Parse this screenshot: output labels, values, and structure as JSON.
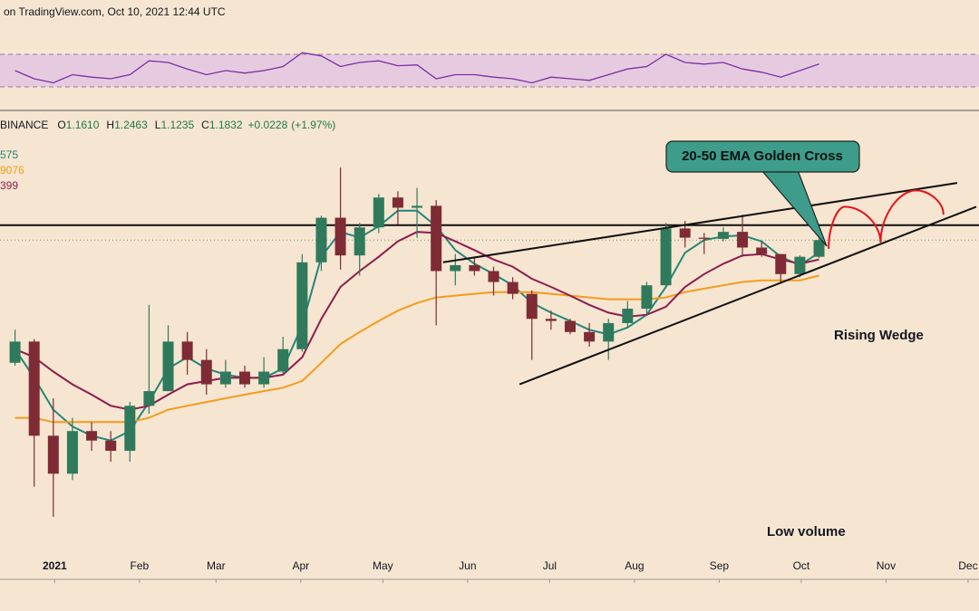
{
  "chart_data": {
    "type": "candlestick",
    "header": "on TradingView.com, Oct 10, 2021 12:44 UTC",
    "symbol": "BINANCE",
    "ohlc_header": {
      "labels": [
        "O",
        "H",
        "L",
        "C"
      ],
      "values": [
        1.161,
        1.2463,
        1.1235,
        1.1832
      ],
      "value_labels": [
        "1.1610",
        "1.2463",
        "1.1235",
        "1.1832"
      ],
      "change": 0.0228,
      "change_label": "+0.0228",
      "change_pct": 1.97,
      "change_pct_label": "(+1.97%)"
    },
    "log_scale": true,
    "ylim": [
      0.117,
      2.78
    ],
    "xlim": [
      "2020-12-12",
      "2021-12-05"
    ],
    "xticks": [
      {
        "value": "2021-01-01",
        "label": "2021"
      },
      {
        "value": "2021-02-01",
        "label": "Feb"
      },
      {
        "value": "2021-03-01",
        "label": "Mar"
      },
      {
        "value": "2021-04-01",
        "label": "Apr"
      },
      {
        "value": "2021-05-01",
        "label": "May"
      },
      {
        "value": "2021-06-01",
        "label": "Jun"
      },
      {
        "value": "2021-07-01",
        "label": "Jul"
      },
      {
        "value": "2021-08-01",
        "label": "Aug"
      },
      {
        "value": "2021-09-01",
        "label": "Sep"
      },
      {
        "value": "2021-10-01",
        "label": "Oct"
      },
      {
        "value": "2021-11-01",
        "label": "Nov"
      },
      {
        "value": "2021-12-01",
        "label": "Dec"
      }
    ],
    "up_color": "#2f7a5c",
    "down_color": "#7e2b35",
    "candles": {
      "x": [
        "2020-12-14",
        "2020-12-21",
        "2020-12-28",
        "2021-01-04",
        "2021-01-11",
        "2021-01-18",
        "2021-01-25",
        "2021-02-01",
        "2021-02-08",
        "2021-02-15",
        "2021-02-22",
        "2021-03-01",
        "2021-03-08",
        "2021-03-15",
        "2021-03-22",
        "2021-03-29",
        "2021-04-05",
        "2021-04-12",
        "2021-04-19",
        "2021-04-26",
        "2021-05-03",
        "2021-05-10",
        "2021-05-17",
        "2021-05-24",
        "2021-05-31",
        "2021-06-07",
        "2021-06-14",
        "2021-06-21",
        "2021-06-28",
        "2021-07-05",
        "2021-07-12",
        "2021-07-19",
        "2021-07-26",
        "2021-08-02",
        "2021-08-09",
        "2021-08-16",
        "2021-08-23",
        "2021-08-30",
        "2021-09-06",
        "2021-09-13",
        "2021-09-20",
        "2021-09-27",
        "2021-10-04"
      ],
      "open": [
        0.5,
        0.58,
        0.3,
        0.23,
        0.31,
        0.29,
        0.27,
        0.37,
        0.41,
        0.58,
        0.51,
        0.43,
        0.47,
        0.43,
        0.47,
        0.55,
        1.01,
        1.38,
        1.06,
        1.29,
        1.59,
        1.48,
        1.5,
        0.95,
        0.99,
        0.95,
        0.88,
        0.81,
        0.68,
        0.67,
        0.62,
        0.58,
        0.66,
        0.73,
        0.86,
        1.28,
        1.2,
        1.19,
        1.25,
        1.12,
        1.07,
        0.93,
        1.05
      ],
      "high": [
        0.63,
        0.59,
        0.39,
        0.34,
        0.33,
        0.31,
        0.38,
        0.75,
        0.65,
        0.62,
        0.55,
        0.51,
        0.49,
        0.52,
        0.6,
        1.07,
        1.4,
        1.96,
        1.33,
        1.63,
        1.66,
        1.7,
        1.56,
        1.07,
        1.05,
        0.98,
        0.91,
        0.83,
        0.72,
        0.68,
        0.66,
        0.68,
        0.77,
        0.88,
        1.33,
        1.35,
        1.24,
        1.29,
        1.41,
        1.17,
        1.07,
        1.06,
        1.25
      ],
      "low": [
        0.49,
        0.21,
        0.17,
        0.22,
        0.27,
        0.25,
        0.25,
        0.35,
        0.41,
        0.46,
        0.4,
        0.42,
        0.42,
        0.42,
        0.46,
        0.54,
        0.95,
        0.96,
        0.92,
        1.24,
        1.32,
        1.2,
        0.65,
        0.86,
        0.92,
        0.8,
        0.78,
        0.51,
        0.63,
        0.61,
        0.56,
        0.51,
        0.64,
        0.7,
        0.85,
        1.12,
        1.07,
        1.17,
        1.05,
        1.05,
        0.87,
        0.91,
        1.04
      ],
      "close": [
        0.58,
        0.3,
        0.23,
        0.31,
        0.29,
        0.27,
        0.37,
        0.41,
        0.58,
        0.51,
        0.43,
        0.47,
        0.43,
        0.47,
        0.55,
        1.01,
        1.38,
        1.06,
        1.29,
        1.59,
        1.48,
        1.5,
        0.95,
        0.99,
        0.95,
        0.88,
        0.81,
        0.68,
        0.67,
        0.62,
        0.58,
        0.66,
        0.73,
        0.86,
        1.28,
        1.2,
        1.19,
        1.25,
        1.12,
        1.07,
        0.93,
        1.05,
        1.18
      ]
    },
    "emas": [
      {
        "name": "575",
        "color": "#23877a",
        "values": [
          0.55,
          0.45,
          0.36,
          0.32,
          0.3,
          0.29,
          0.31,
          0.38,
          0.48,
          0.52,
          0.48,
          0.46,
          0.45,
          0.45,
          0.48,
          0.65,
          1.05,
          1.25,
          1.2,
          1.3,
          1.45,
          1.45,
          1.3,
          1.1,
          1.0,
          0.93,
          0.86,
          0.76,
          0.71,
          0.67,
          0.63,
          0.61,
          0.64,
          0.7,
          0.85,
          1.08,
          1.18,
          1.21,
          1.22,
          1.17,
          1.05,
          0.99,
          1.08
        ]
      },
      {
        "name": "9076",
        "color": "#f39c1e",
        "values": [
          0.34,
          0.34,
          0.33,
          0.33,
          0.33,
          0.33,
          0.33,
          0.34,
          0.36,
          0.37,
          0.38,
          0.39,
          0.4,
          0.41,
          0.42,
          0.44,
          0.5,
          0.57,
          0.62,
          0.67,
          0.72,
          0.76,
          0.79,
          0.8,
          0.81,
          0.82,
          0.82,
          0.82,
          0.81,
          0.8,
          0.79,
          0.78,
          0.78,
          0.78,
          0.79,
          0.82,
          0.84,
          0.86,
          0.88,
          0.89,
          0.89,
          0.89,
          0.92
        ]
      },
      {
        "name": "399",
        "color": "#8c1d4e",
        "values": [
          0.55,
          0.52,
          0.47,
          0.43,
          0.4,
          0.37,
          0.36,
          0.37,
          0.4,
          0.43,
          0.44,
          0.45,
          0.45,
          0.45,
          0.46,
          0.52,
          0.68,
          0.85,
          0.95,
          1.05,
          1.17,
          1.25,
          1.24,
          1.17,
          1.1,
          1.03,
          0.98,
          0.9,
          0.85,
          0.8,
          0.75,
          0.71,
          0.69,
          0.7,
          0.74,
          0.85,
          0.93,
          1.0,
          1.06,
          1.07,
          1.03,
          1.0,
          1.03
        ]
      }
    ],
    "rsi": {
      "color": "#7b2fa0",
      "band_color": "#e6cbe0",
      "ylim": [
        0,
        100
      ],
      "bands": [
        70,
        30
      ],
      "values": [
        50,
        40,
        35,
        45,
        42,
        40,
        45,
        62,
        60,
        52,
        45,
        50,
        47,
        50,
        55,
        72,
        68,
        55,
        60,
        62,
        56,
        57,
        40,
        45,
        45,
        42,
        40,
        35,
        42,
        40,
        38,
        45,
        52,
        55,
        70,
        60,
        58,
        60,
        52,
        48,
        42,
        50,
        58
      ]
    },
    "resistance": 1.31,
    "wedge": [
      {
        "x": [
          "2021-05-23",
          "2021-11-27"
        ],
        "y": [
          1.01,
          1.76
        ]
      },
      {
        "x": [
          "2021-06-20",
          "2021-12-04"
        ],
        "y": [
          0.43,
          1.49
        ]
      }
    ],
    "projection": {
      "color": "#e4141b",
      "x": [
        "2021-10-11",
        "2021-10-17",
        "2021-10-30",
        "2021-11-12",
        "2021-11-22"
      ],
      "y": [
        1.11,
        1.49,
        1.16,
        1.67,
        1.41
      ]
    },
    "callout": "20-50 EMA Golden Cross",
    "annotations": [
      "Rising Wedge",
      "Low volume"
    ]
  }
}
